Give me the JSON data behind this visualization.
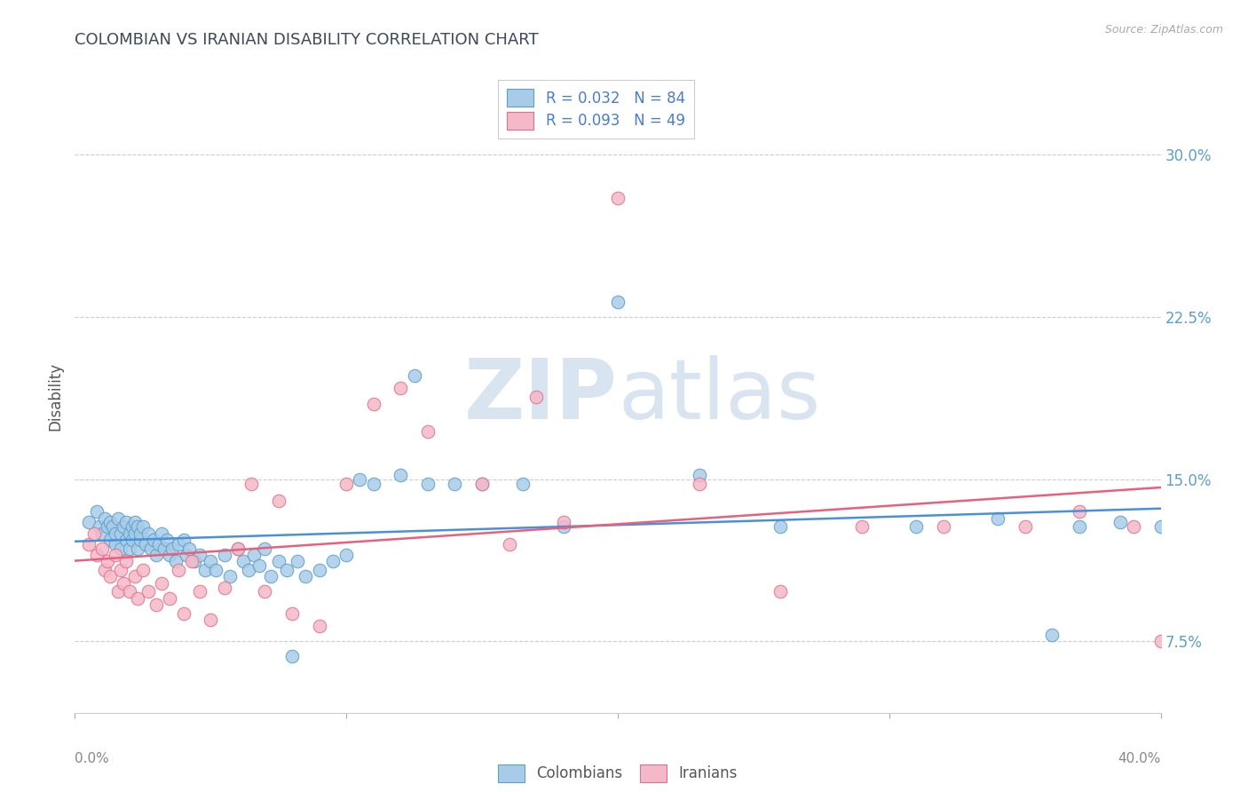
{
  "title": "COLOMBIAN VS IRANIAN DISABILITY CORRELATION CHART",
  "source": "Source: ZipAtlas.com",
  "ylabel": "Disability",
  "ytick_labels": [
    "7.5%",
    "15.0%",
    "22.5%",
    "30.0%"
  ],
  "ytick_values": [
    0.075,
    0.15,
    0.225,
    0.3
  ],
  "xlim": [
    0.0,
    0.4
  ],
  "ylim": [
    0.042,
    0.335
  ],
  "legend_label1": "R = 0.032   N = 84",
  "legend_label2": "R = 0.093   N = 49",
  "colombians_label": "Colombians",
  "iranians_label": "Iranians",
  "blue_scatter": "#a8cce8",
  "pink_scatter": "#f4b8c8",
  "blue_edge": "#5b9ec9",
  "pink_edge": "#e0708a",
  "blue_line": "#4a90d9",
  "pink_line": "#e8607a",
  "watermark_color": "#d8e4f0",
  "title_color": "#3d4a5a",
  "ytick_color": "#5b9ec9",
  "xtick_color": "#888888",
  "ylabel_color": "#555555",
  "grid_color": "#cccccc",
  "legend_text_color": "#333333",
  "legend_rn_color": "#4a7cc9",
  "source_color": "#aaaaaa",
  "colombians_x": [
    0.005,
    0.008,
    0.009,
    0.01,
    0.011,
    0.012,
    0.013,
    0.013,
    0.014,
    0.015,
    0.015,
    0.016,
    0.017,
    0.017,
    0.018,
    0.019,
    0.019,
    0.02,
    0.02,
    0.021,
    0.021,
    0.022,
    0.022,
    0.023,
    0.023,
    0.024,
    0.024,
    0.025,
    0.026,
    0.027,
    0.028,
    0.029,
    0.03,
    0.031,
    0.032,
    0.033,
    0.034,
    0.035,
    0.036,
    0.037,
    0.038,
    0.04,
    0.041,
    0.042,
    0.044,
    0.046,
    0.048,
    0.05,
    0.052,
    0.055,
    0.057,
    0.06,
    0.062,
    0.064,
    0.066,
    0.068,
    0.07,
    0.072,
    0.075,
    0.078,
    0.08,
    0.082,
    0.085,
    0.09,
    0.095,
    0.1,
    0.105,
    0.11,
    0.12,
    0.125,
    0.13,
    0.14,
    0.15,
    0.165,
    0.18,
    0.2,
    0.23,
    0.26,
    0.31,
    0.34,
    0.36,
    0.37,
    0.385,
    0.4
  ],
  "colombians_y": [
    0.13,
    0.135,
    0.128,
    0.125,
    0.132,
    0.128,
    0.13,
    0.122,
    0.128,
    0.12,
    0.125,
    0.132,
    0.118,
    0.125,
    0.128,
    0.122,
    0.13,
    0.125,
    0.118,
    0.128,
    0.122,
    0.125,
    0.13,
    0.128,
    0.118,
    0.122,
    0.125,
    0.128,
    0.12,
    0.125,
    0.118,
    0.122,
    0.115,
    0.12,
    0.125,
    0.118,
    0.122,
    0.115,
    0.118,
    0.112,
    0.12,
    0.122,
    0.115,
    0.118,
    0.112,
    0.115,
    0.108,
    0.112,
    0.108,
    0.115,
    0.105,
    0.118,
    0.112,
    0.108,
    0.115,
    0.11,
    0.118,
    0.105,
    0.112,
    0.108,
    0.068,
    0.112,
    0.105,
    0.108,
    0.112,
    0.115,
    0.15,
    0.148,
    0.152,
    0.198,
    0.148,
    0.148,
    0.148,
    0.148,
    0.128,
    0.232,
    0.152,
    0.128,
    0.128,
    0.132,
    0.078,
    0.128,
    0.13,
    0.128
  ],
  "iranians_x": [
    0.005,
    0.007,
    0.008,
    0.01,
    0.011,
    0.012,
    0.013,
    0.015,
    0.016,
    0.017,
    0.018,
    0.019,
    0.02,
    0.022,
    0.023,
    0.025,
    0.027,
    0.03,
    0.032,
    0.035,
    0.038,
    0.04,
    0.043,
    0.046,
    0.05,
    0.055,
    0.06,
    0.065,
    0.07,
    0.075,
    0.08,
    0.09,
    0.1,
    0.11,
    0.12,
    0.13,
    0.15,
    0.17,
    0.2,
    0.23,
    0.26,
    0.29,
    0.32,
    0.35,
    0.37,
    0.39,
    0.16,
    0.18,
    0.4
  ],
  "iranians_y": [
    0.12,
    0.125,
    0.115,
    0.118,
    0.108,
    0.112,
    0.105,
    0.115,
    0.098,
    0.108,
    0.102,
    0.112,
    0.098,
    0.105,
    0.095,
    0.108,
    0.098,
    0.092,
    0.102,
    0.095,
    0.108,
    0.088,
    0.112,
    0.098,
    0.085,
    0.1,
    0.118,
    0.148,
    0.098,
    0.14,
    0.088,
    0.082,
    0.148,
    0.185,
    0.192,
    0.172,
    0.148,
    0.188,
    0.28,
    0.148,
    0.098,
    0.128,
    0.128,
    0.128,
    0.135,
    0.128,
    0.12,
    0.13,
    0.075
  ]
}
